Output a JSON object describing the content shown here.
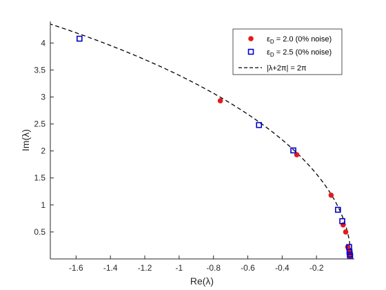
{
  "chart_data": {
    "type": "scatter",
    "xlabel": "Re(λ)",
    "ylabel": "Im(λ)",
    "xlim": [
      -1.75,
      0.02
    ],
    "ylim": [
      0,
      4.4
    ],
    "xticks": [
      -1.6,
      -1.4,
      -1.2,
      -1,
      -0.8,
      -0.6,
      -0.4,
      -0.2
    ],
    "xtick_labels": [
      "-1.6",
      "-1.4",
      "-1.2",
      "-1",
      "-0.8",
      "-0.6",
      "-0.4",
      "-0.2"
    ],
    "yticks": [
      0.5,
      1,
      1.5,
      2,
      2.5,
      3,
      3.5,
      4
    ],
    "ytick_labels": [
      "0.5",
      "1",
      "1.5",
      "2",
      "2.5",
      "3",
      "3.5",
      "4"
    ],
    "grid": false,
    "legend_position": "top-right",
    "series": [
      {
        "name": "εD = 2.0 (0% noise)",
        "legend_main": "ε",
        "legend_sub": "D",
        "legend_rest": " = 2.0 (0% noise)",
        "marker": "filled-circle",
        "color": "#e41a1c",
        "x": [
          -0.76,
          -0.315,
          -0.115,
          -0.045,
          -0.03,
          -0.018,
          -0.008,
          -0.004
        ],
        "y": [
          2.93,
          1.93,
          1.18,
          0.63,
          0.5,
          0.22,
          0.14,
          0.06
        ]
      },
      {
        "name": "εD = 2.5 (0% noise)",
        "legend_main": "ε",
        "legend_sub": "D",
        "legend_rest": " = 2.5 (0% noise)",
        "marker": "open-square",
        "color": "#0000cc",
        "x": [
          -1.58,
          -0.535,
          -0.335,
          -0.075,
          -0.05,
          -0.01,
          -0.008,
          -0.006,
          -0.004
        ],
        "y": [
          4.08,
          2.48,
          2.01,
          0.91,
          0.7,
          0.22,
          0.13,
          0.08,
          0.05
        ]
      },
      {
        "name": "|λ+2π| = 2π",
        "legend_text": "|λ+2π| = 2π",
        "style": "dashed",
        "color": "#000000",
        "type": "line",
        "curve": "circle",
        "center": [
          -6.2832,
          0
        ],
        "radius": 6.2832
      }
    ]
  }
}
